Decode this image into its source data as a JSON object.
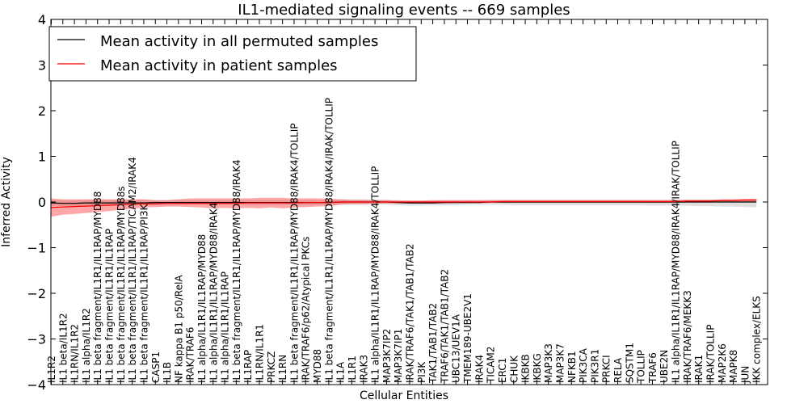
{
  "chart_data": {
    "type": "line",
    "title": "IL1-mediated signaling events -- 669 samples",
    "xlabel": "Cellular Entities",
    "ylabel": "Inferred Activity",
    "ylim": [
      -4,
      4
    ],
    "yticks": [
      -4,
      -3,
      -2,
      -1,
      0,
      1,
      2,
      3,
      4
    ],
    "ytick_labels": [
      "−4",
      "−3",
      "−2",
      "−1",
      "0",
      "1",
      "2",
      "3",
      "4"
    ],
    "grid": false,
    "legend_position": "top-left",
    "categories": [
      "IL1R2",
      "IL1 beta/IL1R2",
      "IL1RN/IL1R2",
      "IL1 alpha/IL1R2",
      "IL1 beta fragment/IL1R1/IL1RAP/MYD88",
      "IL1 beta fragment/IL1R1/IL1RAP",
      "IL1 beta fragment/IL1R1/IL1RAP/MYD88s",
      "IL1 beta fragment/IL1R1/IL1RAP/TICAM2/IRAK4",
      "IL1 beta fragment/IL1R1/IL1RAP/PI3K",
      "CASP1",
      "IL1B",
      "NF kappa B1 p50/RelA",
      "IRAK/TRAF6",
      "IL1 alpha/IL1R1/IL1RAP/MYD88",
      "IL1 alpha/IL1R1/IL1RAP/MYD88/IRAK4",
      "IL1 alpha/IL1R1/IL1RAP",
      "IL1 beta fragment/IL1R1/IL1RAP/MYD88/IRAK4",
      "IL1RAP",
      "IL1RN/IL1R1",
      "PRKCZ",
      "IL1RN",
      "IL1 beta fragment/IL1R1/IL1RAP/MYD88/IRAK4/TOLLIP",
      "IRAK/TRAF6/p62/Atypical PKCs",
      "MYD88",
      "IL1 beta fragment/IL1R1/IL1RAP/MYD88/IRAK4/IRAK/TOLLIP",
      "IL1A",
      "IL1R1",
      "IRAK3",
      "IL1 alpha/IL1R1/IL1RAP/MYD88/IRAK4/TOLLIP",
      "MAP3K7IP2",
      "MAP3K7IP1",
      "IRAK/TRAF6/TAK1/TAB1/TAB2",
      "PI3K",
      "TAK1/TAB1/TAB2",
      "TRAF6/TAK1/TAB1/TAB2",
      "UBC13/UEV1A",
      "TMEM189-UBE2V1",
      "IRAK4",
      "TICAM2",
      "ERC1",
      "CHUK",
      "IKBKB",
      "IKBKG",
      "MAP3K3",
      "MAP3K7",
      "NFKB1",
      "PIK3CA",
      "PIK3R1",
      "PRKCI",
      "RELA",
      "SQSTM1",
      "TOLLIP",
      "TRAF6",
      "UBE2N",
      "IL1 alpha/IL1R1/IL1RAP/MYD88/IRAK4/IRAK/TOLLIP",
      "IRAK/TRAF6/MEKK3",
      "IRAK1",
      "IRAK/TOLLIP",
      "MAP2K6",
      "MAPK8",
      "JUN",
      "IKK complex/ELKS"
    ],
    "series": [
      {
        "name": "Mean activity in all permuted samples",
        "color": "#000000",
        "band_color": "#bbbbbb",
        "values": [
          -0.02,
          -0.03,
          -0.03,
          -0.02,
          -0.02,
          -0.02,
          -0.02,
          -0.02,
          -0.02,
          -0.01,
          -0.01,
          -0.01,
          -0.01,
          -0.01,
          -0.01,
          -0.01,
          -0.01,
          -0.01,
          -0.01,
          -0.01,
          -0.01,
          -0.01,
          -0.01,
          -0.01,
          -0.01,
          0.0,
          0.0,
          0.0,
          0.0,
          0.0,
          -0.01,
          -0.02,
          -0.02,
          -0.02,
          -0.01,
          -0.01,
          -0.01,
          -0.01,
          0.0,
          0.0,
          0.0,
          0.0,
          0.0,
          0.0,
          0.0,
          0.0,
          0.0,
          0.0,
          0.0,
          0.0,
          0.0,
          0.0,
          0.0,
          0.0,
          0.0,
          0.0,
          0.0,
          0.0,
          0.0,
          0.0,
          0.0,
          0.0
        ],
        "lower": [
          -0.08,
          -0.09,
          -0.09,
          -0.08,
          -0.07,
          -0.07,
          -0.07,
          -0.07,
          -0.06,
          -0.06,
          -0.06,
          -0.06,
          -0.06,
          -0.06,
          -0.06,
          -0.06,
          -0.06,
          -0.06,
          -0.06,
          -0.06,
          -0.06,
          -0.06,
          -0.06,
          -0.06,
          -0.06,
          -0.05,
          -0.05,
          -0.05,
          -0.05,
          -0.06,
          -0.07,
          -0.08,
          -0.08,
          -0.07,
          -0.07,
          -0.07,
          -0.06,
          -0.06,
          -0.06,
          -0.06,
          -0.07,
          -0.07,
          -0.07,
          -0.07,
          -0.07,
          -0.07,
          -0.07,
          -0.07,
          -0.07,
          -0.07,
          -0.07,
          -0.07,
          -0.08,
          -0.08,
          -0.08,
          -0.08,
          -0.09,
          -0.09,
          -0.1,
          -0.1,
          -0.11,
          -0.12
        ],
        "upper": [
          0.04,
          0.03,
          0.03,
          0.04,
          0.04,
          0.04,
          0.04,
          0.04,
          0.04,
          0.04,
          0.04,
          0.04,
          0.04,
          0.04,
          0.04,
          0.04,
          0.04,
          0.04,
          0.04,
          0.04,
          0.04,
          0.04,
          0.04,
          0.04,
          0.04,
          0.05,
          0.05,
          0.05,
          0.05,
          0.05,
          0.04,
          0.03,
          0.03,
          0.03,
          0.04,
          0.04,
          0.04,
          0.04,
          0.05,
          0.05,
          0.05,
          0.05,
          0.05,
          0.05,
          0.05,
          0.05,
          0.05,
          0.05,
          0.05,
          0.05,
          0.05,
          0.05,
          0.05,
          0.05,
          0.05,
          0.05,
          0.05,
          0.05,
          0.05,
          0.05,
          0.05,
          0.05
        ]
      },
      {
        "name": "Mean activity in patient samples",
        "color": "#ff0000",
        "band_color": "#ff0000",
        "values": [
          -0.12,
          -0.11,
          -0.1,
          -0.09,
          -0.08,
          -0.07,
          -0.06,
          -0.05,
          -0.04,
          -0.04,
          -0.03,
          -0.03,
          -0.03,
          -0.03,
          -0.03,
          -0.03,
          -0.03,
          -0.02,
          -0.02,
          -0.02,
          -0.02,
          -0.02,
          -0.01,
          -0.01,
          -0.01,
          0.0,
          0.0,
          0.0,
          0.0,
          0.0,
          0.0,
          0.0,
          0.0,
          0.0,
          0.0,
          0.0,
          0.0,
          0.0,
          0.0,
          0.01,
          0.01,
          0.01,
          0.01,
          0.01,
          0.01,
          0.01,
          0.01,
          0.01,
          0.01,
          0.01,
          0.01,
          0.01,
          0.01,
          0.01,
          0.01,
          0.02,
          0.02,
          0.02,
          0.03,
          0.03,
          0.04,
          0.04
        ],
        "lower": [
          -0.32,
          -0.28,
          -0.26,
          -0.24,
          -0.22,
          -0.2,
          -0.17,
          -0.15,
          -0.12,
          -0.11,
          -0.1,
          -0.1,
          -0.11,
          -0.12,
          -0.14,
          -0.13,
          -0.14,
          -0.13,
          -0.14,
          -0.12,
          -0.14,
          -0.12,
          -0.11,
          -0.1,
          -0.09,
          -0.06,
          -0.05,
          -0.05,
          -0.04,
          -0.03,
          -0.03,
          -0.03,
          -0.03,
          -0.03,
          -0.03,
          -0.02,
          -0.02,
          -0.02,
          -0.02,
          -0.02,
          -0.02,
          -0.02,
          -0.02,
          -0.02,
          -0.02,
          -0.02,
          -0.02,
          -0.02,
          -0.02,
          -0.02,
          -0.02,
          -0.02,
          -0.02,
          -0.02,
          -0.02,
          -0.01,
          -0.01,
          -0.01,
          0.0,
          0.0,
          0.01,
          0.01
        ],
        "upper": [
          0.08,
          0.06,
          0.06,
          0.06,
          0.06,
          0.06,
          0.06,
          0.06,
          0.06,
          0.04,
          0.04,
          0.06,
          0.08,
          0.08,
          0.08,
          0.08,
          0.08,
          0.08,
          0.09,
          0.09,
          0.09,
          0.08,
          0.08,
          0.08,
          0.07,
          0.06,
          0.05,
          0.05,
          0.04,
          0.04,
          0.03,
          0.03,
          0.03,
          0.04,
          0.04,
          0.04,
          0.04,
          0.04,
          0.04,
          0.04,
          0.04,
          0.04,
          0.04,
          0.04,
          0.04,
          0.04,
          0.04,
          0.04,
          0.04,
          0.04,
          0.04,
          0.04,
          0.04,
          0.04,
          0.04,
          0.05,
          0.05,
          0.05,
          0.06,
          0.06,
          0.07,
          0.07
        ]
      }
    ]
  }
}
